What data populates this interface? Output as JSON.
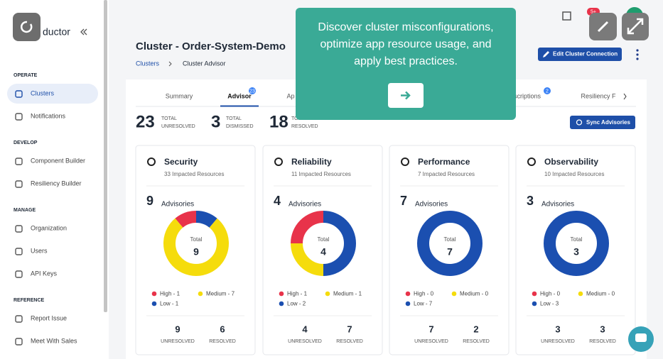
{
  "brand": "ductor",
  "notification_badge": "5+",
  "sidebar": {
    "sections": [
      {
        "title": "OPERATE",
        "items": [
          "Clusters",
          "Notifications"
        ]
      },
      {
        "title": "DEVELOP",
        "items": [
          "Component Builder",
          "Resiliency Builder"
        ]
      },
      {
        "title": "MANAGE",
        "items": [
          "Organization",
          "Users",
          "API Keys"
        ]
      },
      {
        "title": "REFERENCE",
        "items": [
          "Report Issue",
          "Meet With Sales"
        ]
      }
    ]
  },
  "header": {
    "title": "Cluster - Order-System-Demo",
    "breadcrumb": [
      "Clusters",
      "Cluster Advisor"
    ],
    "edit_button": "Edit Cluster Connection"
  },
  "tabs": [
    {
      "label": "Summary"
    },
    {
      "label": "Advisor",
      "badge": 23
    },
    {
      "label": "Ap"
    },
    {
      "label": "scriptions",
      "badge": 2
    },
    {
      "label": "Resiliency F"
    }
  ],
  "totals": [
    {
      "value": 23,
      "label": [
        "TOTAL",
        "UNRESOLVED"
      ]
    },
    {
      "value": 3,
      "label": [
        "TOTAL",
        "DISMISSED"
      ]
    },
    {
      "value": 18,
      "label": [
        "TOTAL",
        "RESOLVED"
      ]
    }
  ],
  "sync_button": "Sync Advisories",
  "advisories_label": "Advisories",
  "total_label": "Total",
  "unresolved_label": "UNRESOLVED",
  "resolved_label": "RESOLVED",
  "cards": [
    {
      "title": "Security",
      "impacted": "33 Impacted Resources",
      "advisories": 9,
      "breakdown": [
        {
          "label": "High - 1",
          "value": 1,
          "color": "#e8334a"
        },
        {
          "label": "Medium - 7",
          "value": 7,
          "color": "#f5dc0c"
        },
        {
          "label": "Low - 1",
          "value": 1,
          "color": "#1b4fb0"
        }
      ],
      "unresolved": 9,
      "resolved": 6
    },
    {
      "title": "Reliability",
      "impacted": "11 Impacted Resources",
      "advisories": 4,
      "breakdown": [
        {
          "label": "High - 1",
          "value": 1,
          "color": "#e8334a"
        },
        {
          "label": "Medium - 1",
          "value": 1,
          "color": "#f5dc0c"
        },
        {
          "label": "Low - 2",
          "value": 2,
          "color": "#1b4fb0"
        }
      ],
      "unresolved": 4,
      "resolved": 7
    },
    {
      "title": "Performance",
      "impacted": "7 Impacted Resources",
      "advisories": 7,
      "breakdown": [
        {
          "label": "High - 0",
          "value": 0,
          "color": "#e8334a"
        },
        {
          "label": "Medium - 0",
          "value": 0,
          "color": "#f5dc0c"
        },
        {
          "label": "Low - 7",
          "value": 7,
          "color": "#1b4fb0"
        }
      ],
      "unresolved": 7,
      "resolved": 2
    },
    {
      "title": "Observability",
      "impacted": "10 Impacted Resources",
      "advisories": 3,
      "breakdown": [
        {
          "label": "High - 0",
          "value": 0,
          "color": "#e8334a"
        },
        {
          "label": "Medium - 0",
          "value": 0,
          "color": "#f5dc0c"
        },
        {
          "label": "Low - 3",
          "value": 3,
          "color": "#1b4fb0"
        }
      ],
      "unresolved": 3,
      "resolved": 3
    }
  ],
  "overlay": {
    "text": "Discover cluster misconfigurations, optimize app resource usage, and apply best practices."
  }
}
